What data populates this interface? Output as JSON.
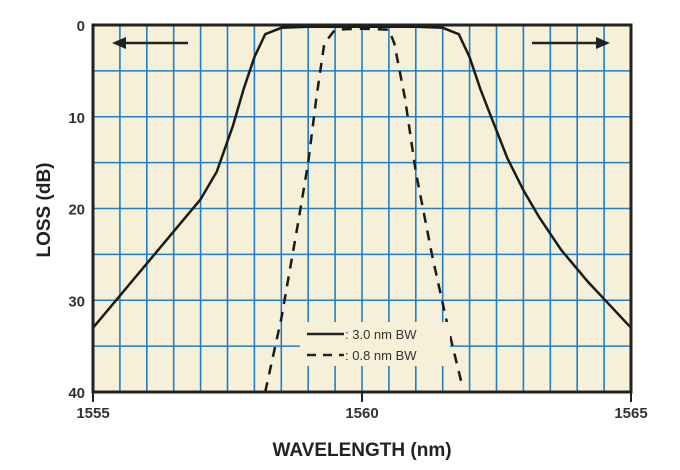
{
  "chart_data": {
    "type": "line",
    "title": "",
    "xlabel": "WAVELENGTH (nm)",
    "ylabel": "LOSS (dB)",
    "xlim": [
      1555,
      1565
    ],
    "ylim": [
      0,
      40
    ],
    "y_inverted": true,
    "xticks": [
      "1555",
      "1560",
      "1565"
    ],
    "yticks": [
      "0",
      "10",
      "20",
      "30",
      "40"
    ],
    "grid": true,
    "grid_color": "#1e7fc4",
    "background_color": "#f6f0d9",
    "legend_position": "bottom-center",
    "series": [
      {
        "name": ": 3.0 nm BW",
        "style": "solid",
        "x": [
          1555,
          1555.5,
          1556,
          1556.5,
          1557,
          1557.3,
          1557.6,
          1557.8,
          1558,
          1558.2,
          1558.5,
          1559,
          1560,
          1561,
          1561.5,
          1561.8,
          1562,
          1562.2,
          1562.4,
          1562.7,
          1563,
          1563.3,
          1563.7,
          1564.2,
          1564.6,
          1565
        ],
        "y": [
          33,
          29.5,
          26,
          22.5,
          19,
          16,
          11,
          7,
          3.5,
          1,
          0.3,
          0.2,
          0.2,
          0.2,
          0.3,
          1,
          3.5,
          7,
          10,
          14.5,
          18,
          21,
          24.5,
          28,
          30.5,
          33
        ]
      },
      {
        "name": ": 0.8 nm BW",
        "style": "dashed",
        "x": [
          1558.2,
          1558.5,
          1558.8,
          1559.0,
          1559.15,
          1559.3,
          1559.5,
          1560,
          1560.5,
          1560.6,
          1560.8,
          1561.0,
          1561.3,
          1561.6,
          1561.85
        ],
        "y": [
          40,
          32,
          22,
          15,
          8,
          2,
          0.5,
          0.4,
          0.5,
          2,
          8,
          16,
          25,
          33,
          39
        ]
      }
    ]
  }
}
